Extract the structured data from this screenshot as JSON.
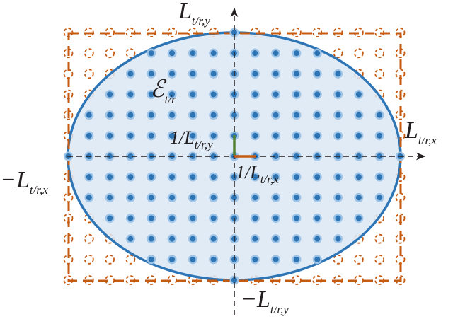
{
  "labels": {
    "y_axis": {
      "main": "L",
      "sub": "t/r,y"
    },
    "x_axis": {
      "main": "L",
      "sub": "t/r,x"
    },
    "neg_x": {
      "main": "−L",
      "sub": "t/r,x"
    },
    "neg_y": {
      "main": "−L",
      "sub": "t/r,y"
    },
    "ellipse": {
      "main": "ℰ",
      "sub": "t/r"
    },
    "step_y": {
      "main": "1/L",
      "sub": "t/r,y"
    },
    "step_x": {
      "main": "1/L",
      "sub": "t/r,x"
    }
  }
}
